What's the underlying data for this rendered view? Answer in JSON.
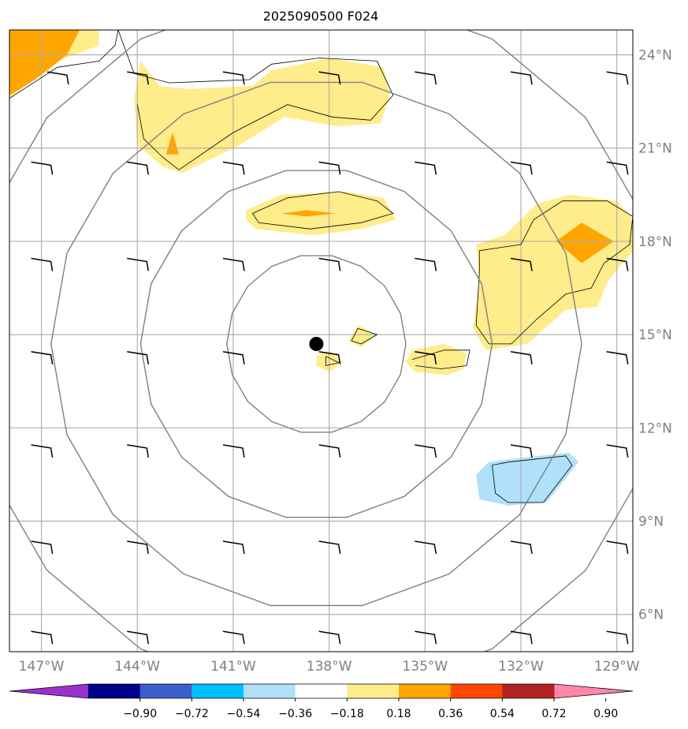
{
  "chart_data": {
    "type": "map-contour",
    "title": "2025090500 F024",
    "projection": "plate-carree",
    "lon_range": [
      -148.0,
      -128.5
    ],
    "lat_range": [
      4.8,
      24.8
    ],
    "lat_ticks": [
      {
        "value": 24,
        "label": "24°N"
      },
      {
        "value": 21,
        "label": "21°N"
      },
      {
        "value": 18,
        "label": "18°N"
      },
      {
        "value": 15,
        "label": "15°N"
      },
      {
        "value": 12,
        "label": "12°N"
      },
      {
        "value": 9,
        "label": "9°N"
      },
      {
        "value": 6,
        "label": "6°N"
      }
    ],
    "lon_ticks": [
      {
        "value": -147,
        "label": "147°W"
      },
      {
        "value": -144,
        "label": "144°W"
      },
      {
        "value": -141,
        "label": "141°W"
      },
      {
        "value": -138,
        "label": "138°W"
      },
      {
        "value": -135,
        "label": "135°W"
      },
      {
        "value": -132,
        "label": "132°W"
      },
      {
        "value": -129,
        "label": "129°W"
      }
    ],
    "grid": true,
    "center_marker": {
      "lon": -138.4,
      "lat": 14.7
    },
    "range_rings_deg": [
      2.8,
      5.5,
      8.3,
      11.0
    ],
    "colorbar": {
      "orientation": "horizontal",
      "extend": "both",
      "levels": [
        -0.9,
        -0.72,
        -0.54,
        -0.36,
        -0.18,
        0.18,
        0.36,
        0.54,
        0.72,
        0.9
      ],
      "tick_labels": [
        "−0.90",
        "−0.72",
        "−0.54",
        "−0.36",
        "−0.18",
        "0.18",
        "0.36",
        "0.54",
        "0.72",
        "0.90"
      ],
      "colors": [
        "#9932cc",
        "#00008b",
        "#3a5fcd",
        "#00bfff",
        "#b0e0fa",
        "#ffffff",
        "#ffec8b",
        "#ffa500",
        "#ff4500",
        "#b22222",
        "#ff88aa"
      ]
    },
    "filled_regions": [
      {
        "level": "0.18-0.36",
        "color": "#ffec8b",
        "points": [
          [
            -148,
            24.8
          ],
          [
            -145.2,
            24.8
          ],
          [
            -145.2,
            24.3
          ],
          [
            -146.5,
            23.8
          ],
          [
            -148,
            22.6
          ]
        ]
      },
      {
        "level": "0.36-0.54",
        "color": "#ffa500",
        "points": [
          [
            -148,
            24.8
          ],
          [
            -145.8,
            24.8
          ],
          [
            -146.2,
            24.0
          ],
          [
            -147.2,
            23.2
          ],
          [
            -148,
            22.7
          ]
        ]
      },
      {
        "level": "0.18-0.36",
        "color": "#ffec8b",
        "points": [
          [
            -143.9,
            23.8
          ],
          [
            -143.3,
            23.0
          ],
          [
            -142.4,
            22.9
          ],
          [
            -140.4,
            23.0
          ],
          [
            -139.8,
            23.5
          ],
          [
            -138.0,
            23.9
          ],
          [
            -136.3,
            23.6
          ],
          [
            -136.1,
            22.7
          ],
          [
            -136.4,
            21.8
          ],
          [
            -137.7,
            21.7
          ],
          [
            -139.4,
            22.0
          ],
          [
            -140.8,
            21.1
          ],
          [
            -142.6,
            20.2
          ],
          [
            -143.2,
            20.4
          ],
          [
            -144.0,
            21.1
          ],
          [
            -144.1,
            22.6
          ]
        ]
      },
      {
        "level": "0.36-0.54",
        "color": "#ffa500",
        "points": [
          [
            -142.9,
            21.5
          ],
          [
            -142.7,
            20.8
          ],
          [
            -143.1,
            20.8
          ]
        ]
      },
      {
        "level": "0.18-0.36",
        "color": "#ffec8b",
        "points": [
          [
            -140.6,
            19.0
          ],
          [
            -139.5,
            19.5
          ],
          [
            -137.5,
            19.6
          ],
          [
            -136.3,
            19.4
          ],
          [
            -135.9,
            18.7
          ],
          [
            -137.0,
            18.4
          ],
          [
            -138.5,
            18.2
          ],
          [
            -140.3,
            18.4
          ],
          [
            -140.6,
            18.7
          ]
        ]
      },
      {
        "level": "0.36-0.54",
        "color": "#ffa500",
        "points": [
          [
            -139.5,
            18.9
          ],
          [
            -138.7,
            19.0
          ],
          [
            -137.8,
            18.9
          ],
          [
            -138.7,
            18.8
          ]
        ]
      },
      {
        "level": "0.18-0.36",
        "color": "#ffec8b",
        "points": [
          [
            -133.4,
            17.9
          ],
          [
            -132.5,
            18.2
          ],
          [
            -131.5,
            19.2
          ],
          [
            -130.5,
            19.5
          ],
          [
            -129.0,
            19.3
          ],
          [
            -128.5,
            18.7
          ],
          [
            -128.5,
            17.7
          ],
          [
            -129.3,
            16.7
          ],
          [
            -129.6,
            15.9
          ],
          [
            -130.6,
            15.8
          ],
          [
            -131.8,
            14.7
          ],
          [
            -133.1,
            14.5
          ],
          [
            -133.5,
            15.2
          ],
          [
            -133.3,
            16.7
          ]
        ]
      },
      {
        "level": "0.36-0.54",
        "color": "#ffa500",
        "points": [
          [
            -130.9,
            18.0
          ],
          [
            -130.1,
            18.6
          ],
          [
            -129.1,
            18.0
          ],
          [
            -130.1,
            17.3
          ]
        ]
      },
      {
        "level": "0.18-0.36",
        "color": "#ffec8b",
        "points": [
          [
            -135.4,
            14.5
          ],
          [
            -134.4,
            14.7
          ],
          [
            -133.7,
            14.4
          ],
          [
            -133.8,
            13.9
          ],
          [
            -134.3,
            13.7
          ],
          [
            -135.3,
            13.8
          ],
          [
            -135.6,
            14.1
          ]
        ]
      },
      {
        "level": "0.18-0.36",
        "color": "#ffec8b",
        "points": [
          [
            -137.1,
            15.3
          ],
          [
            -136.5,
            15.0
          ],
          [
            -137.0,
            14.6
          ],
          [
            -137.4,
            14.8
          ]
        ]
      },
      {
        "level": "0.18-0.36",
        "color": "#ffec8b",
        "points": [
          [
            -138.4,
            14.3
          ],
          [
            -138.0,
            14.5
          ],
          [
            -137.6,
            14.1
          ],
          [
            -138.0,
            13.8
          ],
          [
            -138.4,
            14.0
          ]
        ]
      },
      {
        "level": "-0.36--0.18",
        "color": "#b0e0fa",
        "points": [
          [
            -133.0,
            10.9
          ],
          [
            -132.3,
            11.0
          ],
          [
            -130.5,
            11.2
          ],
          [
            -130.2,
            10.9
          ],
          [
            -131.2,
            9.6
          ],
          [
            -132.4,
            9.5
          ],
          [
            -133.3,
            9.7
          ],
          [
            -133.4,
            10.5
          ]
        ]
      }
    ],
    "contour_lines": [
      [
        [
          -148,
          22.6
        ],
        [
          -146.5,
          23.6
        ],
        [
          -145.2,
          23.8
        ],
        [
          -144.7,
          24.3
        ],
        [
          -144.6,
          24.8
        ]
      ],
      [
        [
          -144.6,
          24.8
        ],
        [
          -144.1,
          23.4
        ],
        [
          -143.0,
          23.1
        ],
        [
          -140.5,
          23.2
        ],
        [
          -139.8,
          23.7
        ],
        [
          -138.3,
          23.9
        ],
        [
          -136.5,
          23.8
        ],
        [
          -136.0,
          22.7
        ],
        [
          -136.7,
          21.9
        ],
        [
          -137.9,
          22.0
        ],
        [
          -139.3,
          22.4
        ],
        [
          -141.0,
          21.5
        ],
        [
          -142.7,
          20.3
        ],
        [
          -143.2,
          20.7
        ],
        [
          -143.8,
          21.3
        ],
        [
          -144.0,
          22.4
        ]
      ],
      [
        [
          -140.4,
          18.9
        ],
        [
          -139.3,
          19.4
        ],
        [
          -137.7,
          19.6
        ],
        [
          -136.5,
          19.3
        ],
        [
          -136.0,
          18.9
        ],
        [
          -137.0,
          18.6
        ],
        [
          -138.6,
          18.4
        ],
        [
          -140.2,
          18.6
        ],
        [
          -140.4,
          18.9
        ]
      ],
      [
        [
          -133.3,
          17.7
        ],
        [
          -132.0,
          17.9
        ],
        [
          -131.6,
          18.7
        ],
        [
          -130.7,
          19.3
        ],
        [
          -129.3,
          19.3
        ],
        [
          -128.5,
          18.8
        ],
        [
          -128.6,
          17.9
        ],
        [
          -129.4,
          17.3
        ],
        [
          -129.8,
          16.5
        ],
        [
          -130.6,
          16.3
        ],
        [
          -131.5,
          15.5
        ],
        [
          -132.3,
          14.7
        ],
        [
          -133.0,
          14.7
        ],
        [
          -133.4,
          15.3
        ],
        [
          -133.3,
          17.0
        ],
        [
          -133.3,
          17.7
        ]
      ],
      [
        [
          -135.4,
          14.2
        ],
        [
          -134.4,
          14.5
        ],
        [
          -133.6,
          14.5
        ],
        [
          -133.7,
          14.0
        ],
        [
          -134.5,
          13.9
        ],
        [
          -135.3,
          14.0
        ]
      ],
      [
        [
          -137.1,
          15.2
        ],
        [
          -136.5,
          15.0
        ],
        [
          -137.0,
          14.7
        ],
        [
          -137.3,
          14.8
        ],
        [
          -137.1,
          15.2
        ]
      ],
      [
        [
          -138.1,
          14.3
        ],
        [
          -137.7,
          14.1
        ],
        [
          -138.1,
          14.0
        ],
        [
          -138.1,
          14.3
        ]
      ],
      [
        [
          -132.9,
          10.8
        ],
        [
          -132.4,
          10.9
        ],
        [
          -130.6,
          11.1
        ],
        [
          -130.4,
          10.8
        ],
        [
          -131.3,
          9.6
        ],
        [
          -132.4,
          9.6
        ],
        [
          -132.8,
          9.9
        ],
        [
          -132.9,
          10.8
        ]
      ]
    ],
    "wind_barbs": [
      [
        -147,
        20.4
      ],
      [
        -144,
        20.4
      ],
      [
        -141,
        20.4
      ],
      [
        -138,
        20.4
      ],
      [
        -135,
        20.4
      ],
      [
        -132,
        20.4
      ],
      [
        -129,
        20.4
      ],
      [
        -147,
        17.3
      ],
      [
        -144,
        17.3
      ],
      [
        -141,
        17.3
      ],
      [
        -138,
        17.3
      ],
      [
        -135,
        17.3
      ],
      [
        -132,
        17.3
      ],
      [
        -129,
        17.3
      ],
      [
        -147,
        14.3
      ],
      [
        -144,
        14.3
      ],
      [
        -141,
        14.3
      ],
      [
        -138,
        14.3
      ],
      [
        -135,
        14.3
      ],
      [
        -132,
        14.3
      ],
      [
        -129,
        14.3
      ],
      [
        -147,
        11.3
      ],
      [
        -144,
        11.3
      ],
      [
        -141,
        11.3
      ],
      [
        -138,
        11.3
      ],
      [
        -135,
        11.3
      ],
      [
        -132,
        11.3
      ],
      [
        -129,
        11.3
      ],
      [
        -147,
        8.2
      ],
      [
        -144,
        8.2
      ],
      [
        -141,
        8.2
      ],
      [
        -138,
        8.2
      ],
      [
        -135,
        8.2
      ],
      [
        -132,
        8.2
      ],
      [
        -129,
        8.2
      ],
      [
        -147,
        5.3
      ],
      [
        -144,
        5.3
      ],
      [
        -141,
        5.3
      ],
      [
        -138,
        5.3
      ],
      [
        -135,
        5.3
      ],
      [
        -132,
        5.3
      ],
      [
        -129,
        5.3
      ],
      [
        -146.5,
        23.3
      ],
      [
        -144,
        23.3
      ],
      [
        -141,
        23.3
      ],
      [
        -138,
        23.3
      ],
      [
        -135,
        23.3
      ],
      [
        -132,
        23.3
      ],
      [
        -129,
        23.3
      ]
    ]
  }
}
